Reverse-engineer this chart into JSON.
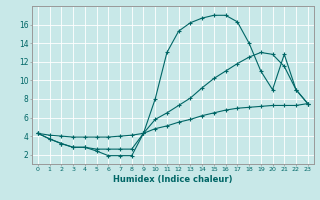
{
  "xlabel": "Humidex (Indice chaleur)",
  "bg_color": "#c8e8e8",
  "grid_color": "#ffffff",
  "line_color": "#006666",
  "xlim": [
    -0.5,
    23.5
  ],
  "ylim": [
    1.0,
    18.0
  ],
  "xticks": [
    0,
    1,
    2,
    3,
    4,
    5,
    6,
    7,
    8,
    9,
    10,
    11,
    12,
    13,
    14,
    15,
    16,
    17,
    18,
    19,
    20,
    21,
    22,
    23
  ],
  "yticks": [
    2,
    4,
    6,
    8,
    10,
    12,
    14,
    16
  ],
  "series1_x": [
    0,
    1,
    2,
    3,
    4,
    5,
    6,
    7,
    8,
    9,
    10,
    11,
    12,
    13,
    14,
    15,
    16,
    17,
    18,
    19,
    20,
    21,
    22,
    23
  ],
  "series1_y": [
    4.3,
    3.7,
    3.2,
    2.8,
    2.8,
    2.4,
    1.9,
    1.9,
    1.9,
    4.3,
    8.0,
    13.0,
    15.3,
    16.2,
    16.7,
    17.0,
    17.0,
    16.3,
    14.0,
    11.0,
    9.0,
    12.8,
    9.0,
    7.5
  ],
  "series2_x": [
    0,
    1,
    2,
    3,
    4,
    5,
    6,
    7,
    8,
    9,
    10,
    11,
    12,
    13,
    14,
    15,
    16,
    17,
    18,
    19,
    20,
    21,
    22,
    23
  ],
  "series2_y": [
    4.3,
    3.7,
    3.2,
    2.8,
    2.8,
    2.6,
    2.6,
    2.6,
    2.6,
    4.3,
    5.8,
    6.5,
    7.3,
    8.1,
    9.2,
    10.2,
    11.0,
    11.8,
    12.5,
    13.0,
    12.8,
    11.5,
    9.0,
    7.5
  ],
  "series3_x": [
    0,
    1,
    2,
    3,
    4,
    5,
    6,
    7,
    8,
    9,
    10,
    11,
    12,
    13,
    14,
    15,
    16,
    17,
    18,
    19,
    20,
    21,
    22,
    23
  ],
  "series3_y": [
    4.3,
    4.1,
    4.0,
    3.9,
    3.9,
    3.9,
    3.9,
    4.0,
    4.1,
    4.3,
    4.8,
    5.1,
    5.5,
    5.8,
    6.2,
    6.5,
    6.8,
    7.0,
    7.1,
    7.2,
    7.3,
    7.3,
    7.3,
    7.5
  ]
}
